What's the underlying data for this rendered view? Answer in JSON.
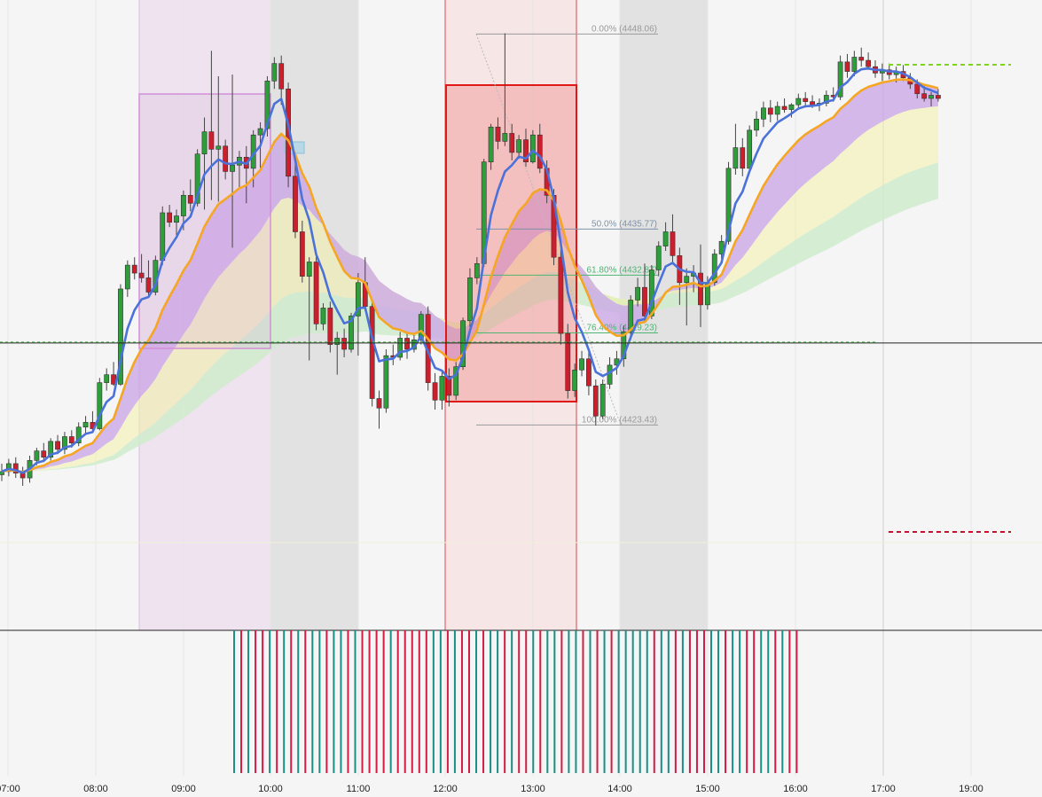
{
  "colors": {
    "background": "#f5f5f5",
    "bull": "#2e9e3a",
    "bear": "#cc1f2d",
    "ema_fast": "#4a72d8",
    "ema_slow": "#f5a623",
    "cloud_purple": "#c9a3e6",
    "cloud_yellow": "#f2f0a8",
    "cloud_green": "#cfeccc",
    "hist_green": "#1a8f86",
    "hist_red": "#d21c46",
    "session_gray": "#e2e2e2",
    "session_pink": "#f6e6e6",
    "session_purple": "#eee3ee",
    "target_green": "#7fd321",
    "target_red": "#c8102e"
  },
  "chart_data": {
    "type": "candlestick",
    "x_ticks": [
      "07:00",
      "08:00",
      "09:00",
      "10:00",
      "11:00",
      "12:00",
      "13:00",
      "14:00",
      "15:00",
      "16:00",
      "17:00",
      "19:00"
    ],
    "price_range": [
      4410.5,
      4450.2
    ],
    "current_price": 4428.6,
    "fibonacci": {
      "high": 4448.06,
      "low": 4423.43,
      "levels": [
        {
          "label": "0.00% (4448.06)",
          "value": 4448.06,
          "color": "#9a9a9a"
        },
        {
          "label": "50.0% (4435.77)",
          "value": 4435.77,
          "color": "#7d93a8"
        },
        {
          "label": "61.80% (4432.87)",
          "value": 4432.87,
          "color": "#4eb572"
        },
        {
          "label": "76.40% (4429.23)",
          "value": 4429.23,
          "color": "#4eb572"
        },
        {
          "label": "100.00% (4423.43)",
          "value": 4423.43,
          "color": "#9a9a9a"
        }
      ]
    },
    "candles": [
      [
        4420.3,
        4421.0,
        4419.9,
        4420.5
      ],
      [
        4420.5,
        4421.3,
        4420.2,
        4421.0
      ],
      [
        4421.0,
        4421.4,
        4420.1,
        4420.4
      ],
      [
        4420.4,
        4420.8,
        4419.6,
        4420.1
      ],
      [
        4420.1,
        4421.5,
        4419.8,
        4421.2
      ],
      [
        4421.2,
        4422.0,
        4420.9,
        4421.8
      ],
      [
        4421.8,
        4422.3,
        4421.1,
        4421.4
      ],
      [
        4421.4,
        4422.6,
        4421.2,
        4422.4
      ],
      [
        4422.4,
        4422.8,
        4421.6,
        4421.9
      ],
      [
        4421.9,
        4423.0,
        4421.6,
        4422.7
      ],
      [
        4422.7,
        4423.1,
        4422.0,
        4422.3
      ],
      [
        4422.3,
        4423.6,
        4422.1,
        4423.3
      ],
      [
        4423.3,
        4424.0,
        4422.9,
        4423.6
      ],
      [
        4423.6,
        4424.3,
        4423.0,
        4423.2
      ],
      [
        4423.2,
        4426.4,
        4423.1,
        4426.1
      ],
      [
        4426.1,
        4427.0,
        4425.6,
        4426.6
      ],
      [
        4426.6,
        4427.4,
        4425.9,
        4426.0
      ],
      [
        4426.0,
        4432.3,
        4425.9,
        4432.0
      ],
      [
        4432.0,
        4433.8,
        4431.5,
        4433.5
      ],
      [
        4433.5,
        4434.0,
        4432.6,
        4433.0
      ],
      [
        4433.0,
        4434.2,
        4432.4,
        4432.7
      ],
      [
        4432.7,
        4433.8,
        4431.5,
        4431.8
      ],
      [
        4431.8,
        4434.1,
        4431.6,
        4433.8
      ],
      [
        4433.8,
        4437.2,
        4433.5,
        4436.8
      ],
      [
        4436.8,
        4437.3,
        4435.9,
        4436.2
      ],
      [
        4436.2,
        4437.0,
        4435.4,
        4436.6
      ],
      [
        4436.6,
        4438.2,
        4435.7,
        4437.9
      ],
      [
        4437.9,
        4438.9,
        4436.9,
        4437.4
      ],
      [
        4437.4,
        4440.8,
        4437.2,
        4440.5
      ],
      [
        4440.5,
        4442.8,
        4437.0,
        4441.9
      ],
      [
        4441.9,
        4447.0,
        4437.6,
        4440.8
      ],
      [
        4440.8,
        4445.4,
        4437.5,
        4441.0
      ],
      [
        4441.0,
        4441.4,
        4438.9,
        4439.4
      ],
      [
        4439.4,
        4445.5,
        4434.6,
        4439.8
      ],
      [
        4439.8,
        4440.7,
        4438.4,
        4440.3
      ],
      [
        4440.3,
        4441.0,
        4437.4,
        4439.6
      ],
      [
        4439.6,
        4442.0,
        4438.4,
        4441.7
      ],
      [
        4441.7,
        4442.5,
        4439.4,
        4442.1
      ],
      [
        4442.1,
        4445.4,
        4441.6,
        4445.1
      ],
      [
        4445.1,
        4446.6,
        4444.6,
        4446.2
      ],
      [
        4446.2,
        4446.7,
        4443.6,
        4444.6
      ],
      [
        4444.6,
        4445.0,
        4438.4,
        4439.1
      ],
      [
        4439.1,
        4440.2,
        4435.2,
        4435.6
      ],
      [
        4435.6,
        4436.3,
        4432.4,
        4432.8
      ],
      [
        4432.8,
        4434.0,
        4427.5,
        4433.7
      ],
      [
        4433.7,
        4434.2,
        4429.4,
        4429.8
      ],
      [
        4429.8,
        4431.1,
        4429.4,
        4430.8
      ],
      [
        4430.8,
        4431.2,
        4428.0,
        4428.5
      ],
      [
        4428.5,
        4429.3,
        4426.6,
        4428.9
      ],
      [
        4428.9,
        4429.5,
        4427.7,
        4428.2
      ],
      [
        4428.2,
        4430.5,
        4428.0,
        4430.3
      ],
      [
        4430.3,
        4433.0,
        4427.8,
        4432.4
      ],
      [
        4432.4,
        4434.0,
        4430.6,
        4430.9
      ],
      [
        4430.9,
        4431.3,
        4424.6,
        4425.1
      ],
      [
        4425.1,
        4425.6,
        4423.2,
        4424.5
      ],
      [
        4424.5,
        4428.2,
        4424.2,
        4427.8
      ],
      [
        4427.8,
        4428.5,
        4427.2,
        4427.7
      ],
      [
        4427.7,
        4429.3,
        4427.5,
        4428.9
      ],
      [
        4428.9,
        4429.3,
        4427.6,
        4428.2
      ],
      [
        4428.2,
        4429.2,
        4428.0,
        4428.8
      ],
      [
        4428.8,
        4430.6,
        4428.5,
        4430.4
      ],
      [
        4430.4,
        4430.9,
        4425.6,
        4426.1
      ],
      [
        4426.1,
        4426.7,
        4424.4,
        4425.0
      ],
      [
        4425.0,
        4426.8,
        4424.4,
        4426.5
      ],
      [
        4426.5,
        4427.0,
        4424.6,
        4425.3
      ],
      [
        4425.3,
        4427.4,
        4425.0,
        4427.1
      ],
      [
        4427.1,
        4430.2,
        4426.9,
        4430.0
      ],
      [
        4430.0,
        4433.3,
        4429.6,
        4432.7
      ],
      [
        4432.7,
        4434.0,
        4432.3,
        4433.6
      ],
      [
        4433.6,
        4440.2,
        4433.4,
        4440.0
      ],
      [
        4440.0,
        4442.4,
        4439.5,
        4442.2
      ],
      [
        4442.2,
        4442.8,
        4440.8,
        4441.3
      ],
      [
        4441.3,
        4448.1,
        4441.0,
        4441.8
      ],
      [
        4441.8,
        4442.4,
        4440.1,
        4440.6
      ],
      [
        4440.6,
        4441.7,
        4440.2,
        4441.4
      ],
      [
        4441.4,
        4442.1,
        4439.7,
        4440.0
      ],
      [
        4440.0,
        4442.0,
        4439.9,
        4441.7
      ],
      [
        4441.7,
        4442.4,
        4439.3,
        4439.6
      ],
      [
        4439.6,
        4440.1,
        4437.4,
        4437.9
      ],
      [
        4437.9,
        4438.3,
        4433.5,
        4434.0
      ],
      [
        4434.0,
        4434.6,
        4428.5,
        4429.2
      ],
      [
        4429.2,
        4429.8,
        4425.1,
        4425.6
      ],
      [
        4425.6,
        4427.3,
        4425.2,
        4426.9
      ],
      [
        4426.9,
        4428.1,
        4426.5,
        4427.6
      ],
      [
        4427.6,
        4428.2,
        4425.3,
        4425.9
      ],
      [
        4425.9,
        4426.3,
        4423.4,
        4424.0
      ],
      [
        4424.0,
        4426.3,
        4423.8,
        4426.0
      ],
      [
        4426.0,
        4427.7,
        4425.7,
        4427.2
      ],
      [
        4427.2,
        4428.1,
        4426.6,
        4427.6
      ],
      [
        4427.6,
        4429.7,
        4427.1,
        4429.3
      ],
      [
        4429.3,
        4431.6,
        4428.8,
        4431.3
      ],
      [
        4431.3,
        4432.7,
        4430.9,
        4432.1
      ],
      [
        4432.1,
        4433.6,
        4429.9,
        4430.3
      ],
      [
        4430.3,
        4433.5,
        4430.1,
        4433.2
      ],
      [
        4433.2,
        4435.0,
        4432.8,
        4434.7
      ],
      [
        4434.7,
        4436.2,
        4434.4,
        4435.6
      ],
      [
        4435.6,
        4436.7,
        4433.7,
        4434.1
      ],
      [
        4434.1,
        4434.6,
        4431.0,
        4432.4
      ],
      [
        4432.4,
        4433.3,
        4429.7,
        4432.8
      ],
      [
        4432.8,
        4433.5,
        4431.8,
        4433.0
      ],
      [
        4433.0,
        4434.8,
        4429.6,
        4431.0
      ],
      [
        4431.0,
        4432.8,
        4430.7,
        4432.4
      ],
      [
        4432.4,
        4434.5,
        4432.2,
        4434.2
      ],
      [
        4434.2,
        4435.4,
        4433.9,
        4435.0
      ],
      [
        4435.0,
        4440.0,
        4434.8,
        4439.6
      ],
      [
        4439.6,
        4442.4,
        4439.2,
        4440.9
      ],
      [
        4440.9,
        4441.5,
        4439.1,
        4439.6
      ],
      [
        4439.6,
        4442.3,
        4439.3,
        4442.0
      ],
      [
        4442.0,
        4443.2,
        4441.6,
        4442.7
      ],
      [
        4442.7,
        4443.8,
        4442.2,
        4443.4
      ],
      [
        4443.4,
        4443.9,
        4442.5,
        4443.0
      ],
      [
        4443.0,
        4443.8,
        4442.6,
        4443.5
      ],
      [
        4443.5,
        4444.0,
        4443.1,
        4443.3
      ],
      [
        4443.3,
        4443.7,
        4442.8,
        4443.6
      ],
      [
        4443.6,
        4444.3,
        4443.3,
        4444.0
      ],
      [
        4444.0,
        4444.4,
        4443.5,
        4443.8
      ],
      [
        4443.8,
        4444.2,
        4443.4,
        4443.6
      ],
      [
        4443.6,
        4444.0,
        4443.2,
        4443.7
      ],
      [
        4443.7,
        4444.5,
        4443.5,
        4444.2
      ],
      [
        4444.2,
        4444.7,
        4443.8,
        4444.1
      ],
      [
        4444.1,
        4446.7,
        4443.9,
        4446.3
      ],
      [
        4446.3,
        4446.8,
        4445.3,
        4445.7
      ],
      [
        4445.7,
        4447.0,
        4445.4,
        4446.6
      ],
      [
        4446.6,
        4447.2,
        4446.0,
        4446.4
      ],
      [
        4446.4,
        4446.9,
        4445.8,
        4446.0
      ],
      [
        4446.0,
        4446.4,
        4445.3,
        4445.6
      ],
      [
        4445.6,
        4446.2,
        4445.1,
        4445.8
      ],
      [
        4445.8,
        4446.2,
        4445.2,
        4445.5
      ],
      [
        4445.5,
        4446.0,
        4445.0,
        4445.7
      ],
      [
        4445.7,
        4446.1,
        4445.1,
        4445.3
      ],
      [
        4445.3,
        4445.6,
        4444.6,
        4444.9
      ],
      [
        4444.9,
        4445.2,
        4444.0,
        4444.3
      ],
      [
        4444.3,
        4444.8,
        4443.8,
        4444.0
      ],
      [
        4444.0,
        4444.4,
        4443.5,
        4444.2
      ],
      [
        4444.2,
        4444.6,
        4443.8,
        4444.0
      ]
    ],
    "histogram": [
      "g",
      "r",
      "g",
      "r",
      "r",
      "g",
      "r",
      "g",
      "r",
      "g",
      "r",
      "g",
      "g",
      "r",
      "g",
      "g",
      "r",
      "g",
      "r",
      "r",
      "r",
      "r",
      "g",
      "r",
      "r",
      "r",
      "r",
      "r",
      "g",
      "g",
      "r",
      "g",
      "r",
      "r",
      "g",
      "r",
      "g",
      "g",
      "r",
      "g",
      "r",
      "r",
      "g",
      "r",
      "g",
      "g",
      "r",
      "g",
      "g",
      "r",
      "g",
      "r",
      "g",
      "r",
      "g",
      "g",
      "g",
      "g",
      "g",
      "r",
      "g",
      "g",
      "r",
      "g",
      "r",
      "r",
      "r",
      "g",
      "g",
      "r",
      "g",
      "g",
      "r",
      "r",
      "g",
      "g",
      "r",
      "g",
      "r",
      "r"
    ]
  }
}
